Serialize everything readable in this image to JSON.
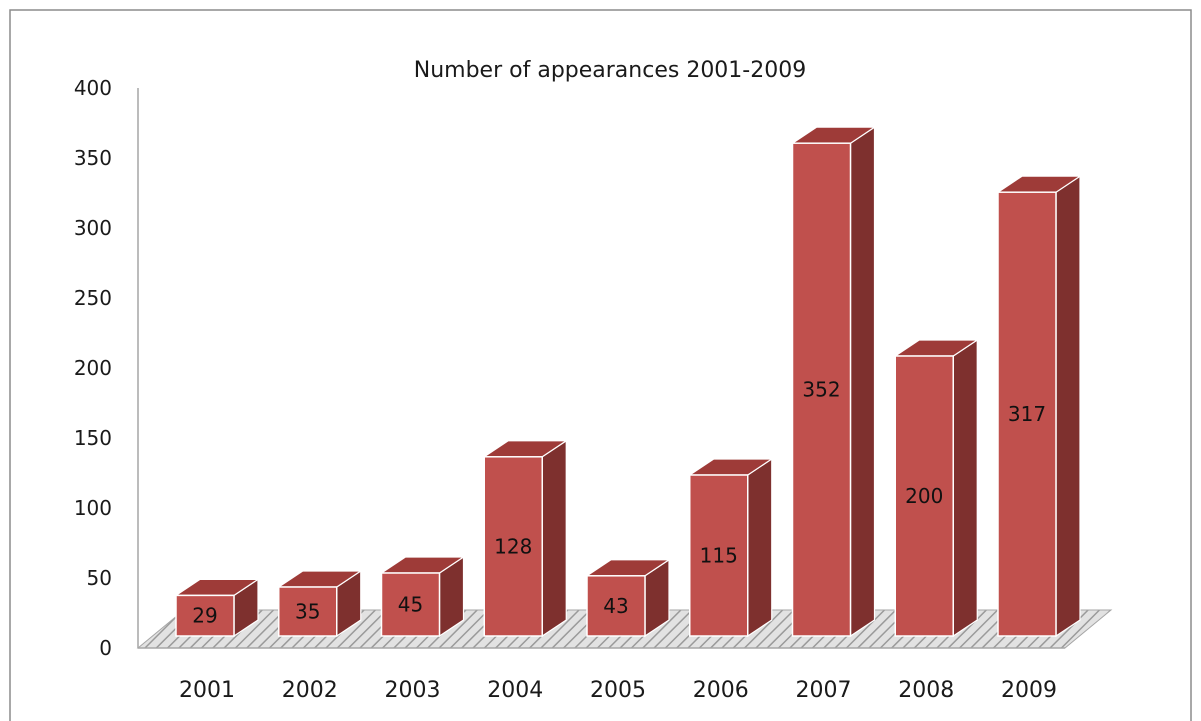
{
  "chart_data": {
    "type": "bar",
    "title": "Number of appearances 2001-2009",
    "xlabel": "",
    "ylabel": "",
    "categories": [
      "2001",
      "2002",
      "2003",
      "2004",
      "2005",
      "2006",
      "2007",
      "2008",
      "2009"
    ],
    "values": [
      29,
      35,
      45,
      128,
      43,
      115,
      352,
      200,
      317
    ],
    "data_labels": [
      "29",
      "35",
      "45",
      "128",
      "43",
      "115",
      "352",
      "200",
      "317"
    ],
    "ylim": [
      0,
      400
    ],
    "yticks": [
      "0",
      "50",
      "100",
      "150",
      "200",
      "250",
      "300",
      "350",
      "400"
    ],
    "grid": false,
    "legend": "none",
    "style": "3d-column",
    "colors": {
      "bar_front": "#C0504D",
      "bar_top": "#9E3B38",
      "bar_side": "#7E302E",
      "floor": "#BFBFBF",
      "axis": "#A6A6A6"
    }
  }
}
